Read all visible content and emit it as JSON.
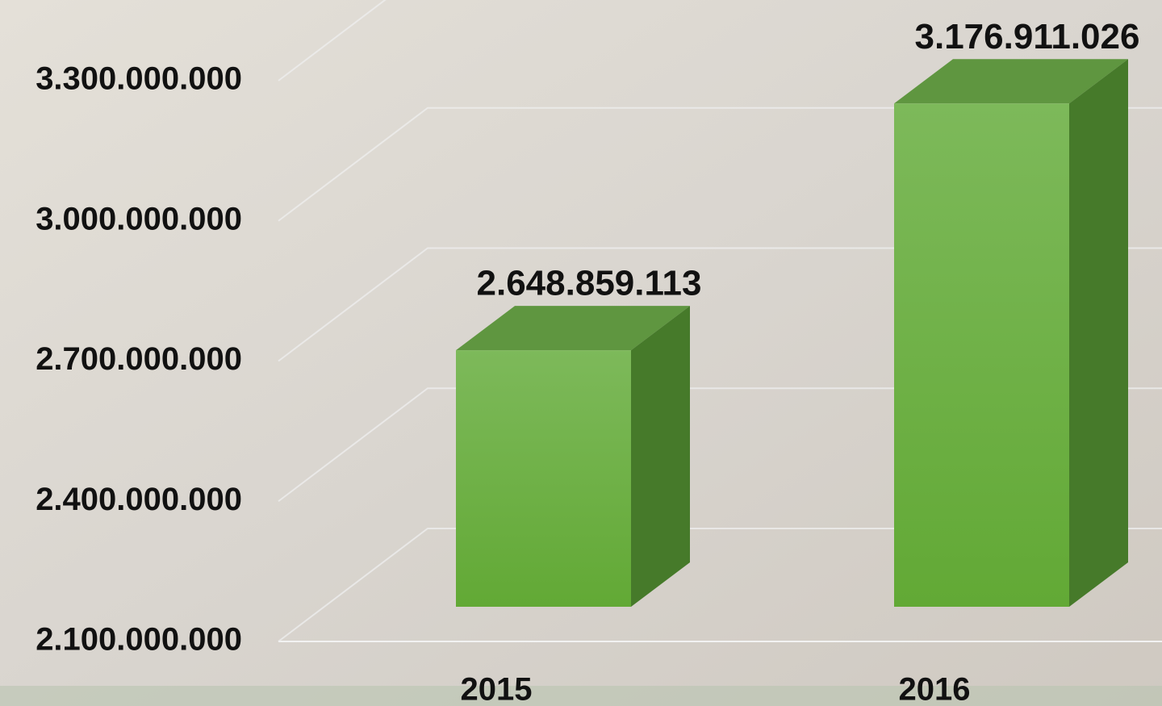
{
  "chart_data": {
    "type": "bar3d",
    "categories": [
      "2015",
      "2016"
    ],
    "values": [
      2648859113,
      3176911026
    ],
    "value_labels": [
      "2.648.859.113",
      "3.176.911.026"
    ],
    "color": "#6db33f",
    "ylim": [
      2100000000,
      3300000000
    ],
    "yticks": [
      {
        "value": 2100000000,
        "label": "2.100.000.000"
      },
      {
        "value": 2400000000,
        "label": "2.400.000.000"
      },
      {
        "value": 2700000000,
        "label": "2.700.000.000"
      },
      {
        "value": 3000000000,
        "label": "3.000.000.000"
      },
      {
        "value": 3300000000,
        "label": "3.300.000.000"
      }
    ],
    "grid": true
  }
}
